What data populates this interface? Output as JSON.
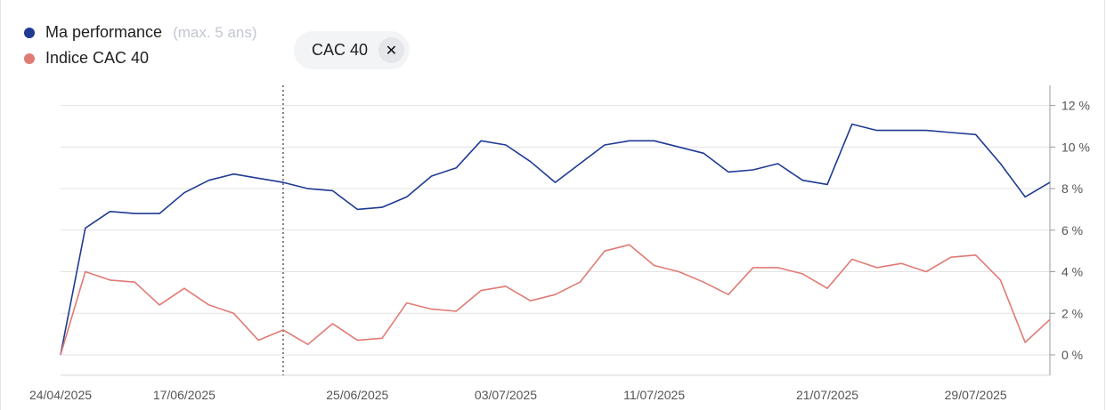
{
  "legend": {
    "items": [
      {
        "label": "Ma performance",
        "note": "(max. 5 ans)",
        "color": "#1f3a93"
      },
      {
        "label": "Indice CAC 40",
        "note": "",
        "color": "#e07b74"
      }
    ]
  },
  "filter_chip": {
    "label": "CAC 40",
    "close_symbol": "✕"
  },
  "chart_data": {
    "type": "line",
    "title": "",
    "xlabel": "",
    "ylabel": "",
    "ylim": [
      -0.5,
      12.9
    ],
    "grid": true,
    "legend_position": "top-left",
    "y_ticks": [
      "0 %",
      "2 %",
      "4 %",
      "6 %",
      "8 %",
      "10 %",
      "12 %"
    ],
    "y_tick_values": [
      0,
      2,
      4,
      6,
      8,
      10,
      12
    ],
    "x_tick_labels": [
      "24/04/2025",
      "17/06/2025",
      "25/06/2025",
      "03/07/2025",
      "11/07/2025",
      "21/07/2025",
      "29/07/2025"
    ],
    "x_tick_indices": [
      0,
      5,
      12,
      18,
      24,
      31,
      37
    ],
    "marker_index": 9,
    "series": [
      {
        "name": "Ma performance",
        "color": "#1f3a93",
        "values": [
          0.0,
          6.1,
          6.9,
          6.8,
          6.8,
          7.8,
          8.4,
          8.7,
          8.5,
          8.3,
          8.0,
          7.9,
          7.0,
          7.1,
          7.6,
          8.6,
          9.0,
          10.3,
          10.1,
          9.3,
          8.3,
          9.2,
          10.1,
          10.3,
          10.3,
          10.0,
          9.7,
          8.8,
          8.9,
          9.2,
          8.4,
          8.2,
          11.1,
          10.8,
          10.8,
          10.8,
          10.7,
          10.6,
          9.2,
          7.6,
          8.3
        ]
      },
      {
        "name": "Indice CAC 40",
        "color": "#e07b74",
        "values": [
          0.0,
          4.0,
          3.6,
          3.5,
          2.4,
          3.2,
          2.4,
          2.0,
          0.7,
          1.2,
          0.5,
          1.5,
          0.7,
          0.8,
          2.5,
          2.2,
          2.1,
          3.1,
          3.3,
          2.6,
          2.9,
          3.5,
          5.0,
          5.3,
          4.3,
          4.0,
          3.5,
          2.9,
          4.2,
          4.2,
          3.9,
          3.2,
          4.6,
          4.2,
          4.4,
          4.0,
          4.7,
          4.8,
          3.6,
          0.6,
          1.7
        ]
      }
    ]
  }
}
